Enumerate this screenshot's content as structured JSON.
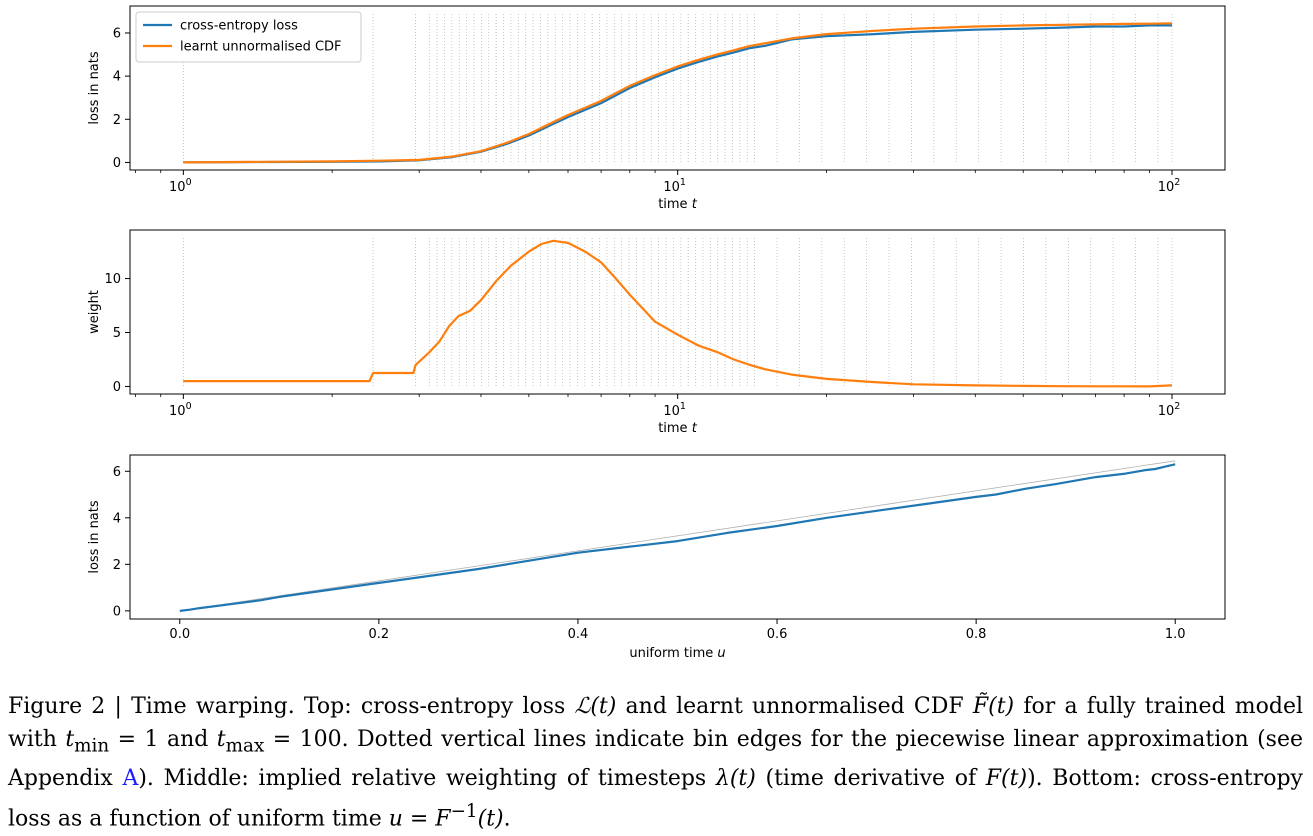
{
  "figure": {
    "panels": [
      {
        "xlabel": "time",
        "xlabel_var": "t",
        "ylabel": "loss in nats",
        "yticks": [
          "0",
          "2",
          "4",
          "6"
        ],
        "xticks": [
          {
            "base": "10",
            "exp": "0"
          },
          {
            "base": "10",
            "exp": "1"
          },
          {
            "base": "10",
            "exp": "2"
          }
        ]
      },
      {
        "xlabel": "time",
        "xlabel_var": "t",
        "ylabel": "weight",
        "yticks": [
          "0",
          "5",
          "10"
        ],
        "xticks": [
          {
            "base": "10",
            "exp": "0"
          },
          {
            "base": "10",
            "exp": "1"
          },
          {
            "base": "10",
            "exp": "2"
          }
        ]
      },
      {
        "xlabel": "uniform time",
        "xlabel_var": "u",
        "ylabel": "loss in nats",
        "yticks": [
          "0",
          "2",
          "4",
          "6"
        ],
        "xticks": [
          "0.0",
          "0.2",
          "0.4",
          "0.6",
          "0.8",
          "1.0"
        ]
      }
    ],
    "legend": [
      "cross-entropy loss",
      "learnt unnormalised CDF"
    ],
    "colors": {
      "blue": "#1f77b4",
      "orange": "#ff7f0e",
      "grid": "#b0b0b0"
    }
  },
  "chart_data": [
    {
      "type": "line",
      "xscale": "log",
      "xlim": [
        0.78,
        128
      ],
      "ylim": [
        -0.35,
        7.25
      ],
      "xlabel": "time t",
      "ylabel": "loss in nats",
      "legend_position": "upper left",
      "bin_edges_note": "dotted vertical lines",
      "series": [
        {
          "name": "cross-entropy loss",
          "color": "#1f77b4",
          "x": [
            1,
            1.5,
            2,
            2.5,
            3,
            3.5,
            4,
            4.5,
            5,
            5.5,
            6,
            7,
            8,
            9,
            10,
            11,
            12,
            13,
            14,
            15,
            17,
            20,
            25,
            30,
            40,
            50,
            60,
            70,
            80,
            90,
            100
          ],
          "y": [
            0,
            0.02,
            0.03,
            0.05,
            0.1,
            0.25,
            0.5,
            0.85,
            1.25,
            1.7,
            2.1,
            2.75,
            3.45,
            3.95,
            4.35,
            4.65,
            4.9,
            5.1,
            5.3,
            5.4,
            5.7,
            5.85,
            5.95,
            6.05,
            6.15,
            6.2,
            6.25,
            6.3,
            6.3,
            6.35,
            6.35
          ]
        },
        {
          "name": "learnt unnormalised CDF",
          "color": "#ff7f0e",
          "x": [
            1,
            1.5,
            2,
            2.5,
            3,
            3.5,
            4,
            4.5,
            5,
            5.5,
            6,
            7,
            8,
            9,
            10,
            11,
            12,
            13,
            14,
            15,
            17,
            20,
            25,
            30,
            40,
            50,
            60,
            70,
            80,
            90,
            100
          ],
          "y": [
            0,
            0.03,
            0.05,
            0.08,
            0.12,
            0.27,
            0.52,
            0.9,
            1.32,
            1.78,
            2.2,
            2.85,
            3.55,
            4.05,
            4.45,
            4.75,
            5.0,
            5.2,
            5.4,
            5.52,
            5.75,
            5.95,
            6.1,
            6.2,
            6.3,
            6.35,
            6.38,
            6.4,
            6.42,
            6.43,
            6.45
          ]
        }
      ]
    },
    {
      "type": "line",
      "xscale": "log",
      "xlim": [
        0.78,
        128
      ],
      "ylim": [
        -0.7,
        14.5
      ],
      "xlabel": "time t",
      "ylabel": "weight",
      "series": [
        {
          "name": "",
          "color": "#ff7f0e",
          "x": [
            1,
            2.38,
            2.42,
            2.92,
            2.95,
            3.15,
            3.3,
            3.45,
            3.6,
            3.8,
            4,
            4.3,
            4.6,
            5,
            5.3,
            5.6,
            6,
            6.5,
            7,
            7.5,
            8,
            9,
            10,
            11,
            12,
            13,
            14,
            15,
            17,
            20,
            25,
            30,
            40,
            50,
            60,
            70,
            80,
            90,
            100
          ],
          "y": [
            0.5,
            0.5,
            1.25,
            1.25,
            2.0,
            3.2,
            4.2,
            5.6,
            6.5,
            7.0,
            8.0,
            9.8,
            11.2,
            12.5,
            13.2,
            13.5,
            13.3,
            12.5,
            11.5,
            10.0,
            8.5,
            6.0,
            4.8,
            3.8,
            3.2,
            2.5,
            2.0,
            1.6,
            1.1,
            0.7,
            0.4,
            0.2,
            0.1,
            0.05,
            0.02,
            0.01,
            0.01,
            0.0,
            0.1
          ]
        }
      ]
    },
    {
      "type": "line",
      "xlim": [
        -0.05,
        1.05
      ],
      "ylim": [
        -0.35,
        6.7
      ],
      "xlabel": "uniform time u",
      "ylabel": "loss in nats",
      "series": [
        {
          "name": "",
          "color": "#1f77b4",
          "x": [
            0,
            0.01,
            0.02,
            0.05,
            0.08,
            0.1,
            0.15,
            0.2,
            0.25,
            0.3,
            0.35,
            0.4,
            0.45,
            0.5,
            0.55,
            0.6,
            0.65,
            0.7,
            0.75,
            0.8,
            0.82,
            0.85,
            0.88,
            0.9,
            0.92,
            0.95,
            0.97,
            0.98,
            0.99,
            1.0
          ],
          "y": [
            0,
            0.05,
            0.12,
            0.28,
            0.45,
            0.6,
            0.9,
            1.2,
            1.5,
            1.8,
            2.15,
            2.5,
            2.75,
            3.0,
            3.35,
            3.65,
            4.0,
            4.3,
            4.6,
            4.9,
            5.0,
            5.25,
            5.45,
            5.6,
            5.75,
            5.9,
            6.05,
            6.1,
            6.2,
            6.3
          ]
        },
        {
          "name": "",
          "color": "#b0b0b0",
          "x": [
            0,
            1
          ],
          "y": [
            0,
            6.45
          ]
        }
      ]
    }
  ],
  "caption": {
    "prefix": "Figure 2 | Time warping. Top: cross-entropy loss ",
    "loss_sym": "ℒ(t)",
    "mid1": " and learnt unnormalised CDF ",
    "cdf_sym": "F̃(t)",
    "mid2": " for a fully trained model with ",
    "tmin": "t",
    "tmin_sub": "min",
    "eq1": " = 1 and ",
    "tmax": "t",
    "tmax_sub": "max",
    "eq2": " = 100. Dotted vertical lines indicate bin edges for the piecewise linear approximation (see Appendix ",
    "appendix_link": "A",
    "mid3": "). Middle: implied relative weighting of timesteps ",
    "lambda_sym": "λ(t)",
    "mid4": " (time derivative of ",
    "F_sym": "F(t)",
    "mid5": "). Bottom: cross-entropy loss as a function of uniform time ",
    "u_eq": "u = F",
    "u_sup": "−1",
    "u_tail": "(t)",
    "end": "."
  }
}
